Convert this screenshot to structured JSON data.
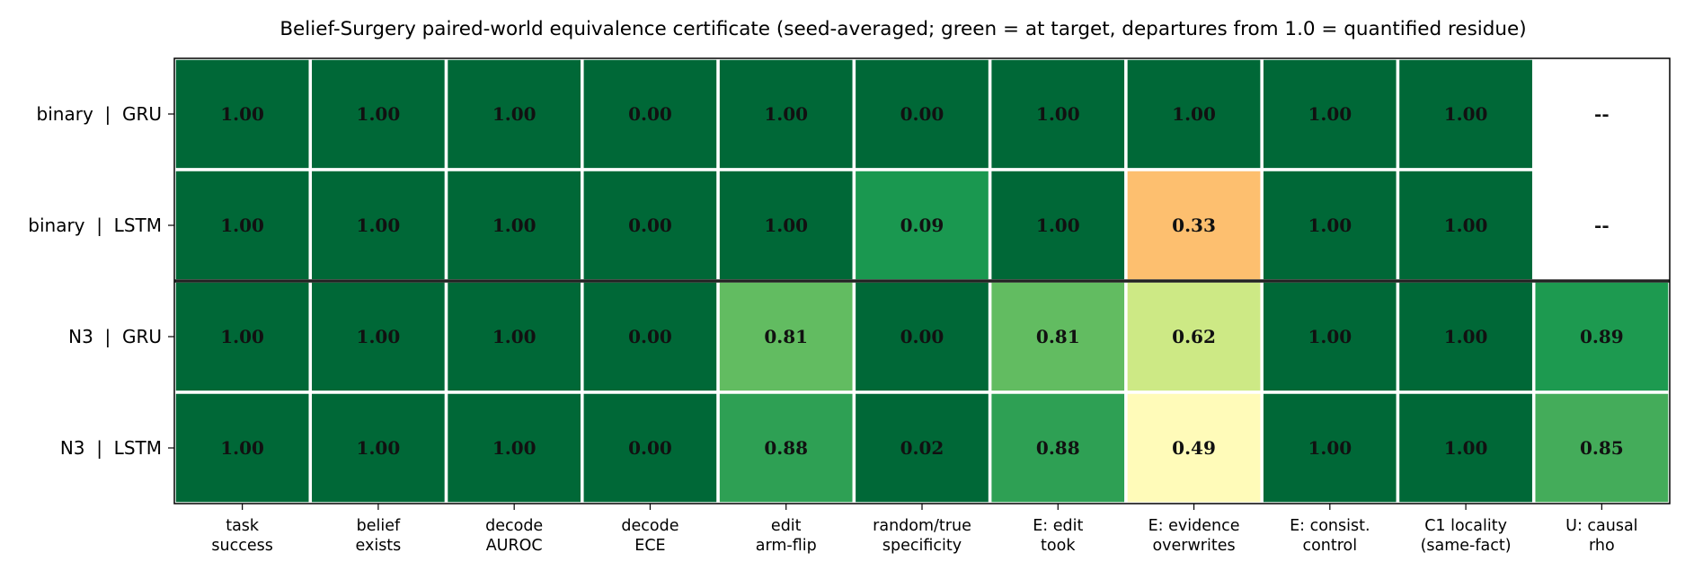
{
  "chart_data": {
    "type": "heatmap",
    "title": "Belief-Surgery paired-world equivalence certificate  (seed-averaged; green = at target, departures from 1.0 = quantified residue)",
    "rows": [
      "binary  |  GRU",
      "binary  |  LSTM",
      "N3  |  GRU",
      "N3  |  LSTM"
    ],
    "columns": [
      [
        "task",
        "success"
      ],
      [
        "belief",
        "exists"
      ],
      [
        "decode",
        "AUROC"
      ],
      [
        "decode",
        "ECE"
      ],
      [
        "edit",
        "arm-flip"
      ],
      [
        "random/true",
        "specificity"
      ],
      [
        "E: edit",
        "took"
      ],
      [
        "E: evidence",
        "overwrites"
      ],
      [
        "E: consist.",
        "control"
      ],
      [
        "C1 locality",
        "(same-fact)"
      ],
      [
        "U: causal",
        "rho"
      ]
    ],
    "values": [
      [
        1.0,
        1.0,
        1.0,
        0.0,
        1.0,
        0.0,
        1.0,
        1.0,
        1.0,
        1.0,
        null
      ],
      [
        1.0,
        1.0,
        1.0,
        0.0,
        1.0,
        0.09,
        1.0,
        0.33,
        1.0,
        1.0,
        null
      ],
      [
        1.0,
        1.0,
        1.0,
        0.0,
        0.81,
        0.0,
        0.81,
        0.62,
        1.0,
        1.0,
        0.89
      ],
      [
        1.0,
        1.0,
        1.0,
        0.0,
        0.88,
        0.02,
        0.88,
        0.49,
        1.0,
        1.0,
        0.85
      ]
    ],
    "labels": [
      [
        "1.00",
        "1.00",
        "1.00",
        "0.00",
        "1.00",
        "0.00",
        "1.00",
        "1.00",
        "1.00",
        "1.00",
        "--"
      ],
      [
        "1.00",
        "1.00",
        "1.00",
        "0.00",
        "1.00",
        "0.09",
        "1.00",
        "0.33",
        "1.00",
        "1.00",
        "--"
      ],
      [
        "1.00",
        "1.00",
        "1.00",
        "0.00",
        "0.81",
        "0.00",
        "0.81",
        "0.62",
        "1.00",
        "1.00",
        "0.89"
      ],
      [
        "1.00",
        "1.00",
        "1.00",
        "0.00",
        "0.88",
        "0.02",
        "0.88",
        "0.49",
        "1.00",
        "1.00",
        "0.85"
      ]
    ],
    "cell_colors": [
      [
        "#006837",
        "#006837",
        "#006837",
        "#006837",
        "#006837",
        "#006837",
        "#006837",
        "#006837",
        "#006837",
        "#006837",
        "#ffffff"
      ],
      [
        "#006837",
        "#006837",
        "#006837",
        "#006837",
        "#006837",
        "#1a9850",
        "#006837",
        "#fdbf6f",
        "#006837",
        "#006837",
        "#ffffff"
      ],
      [
        "#006837",
        "#006837",
        "#006837",
        "#006837",
        "#62bc61",
        "#006837",
        "#62bc61",
        "#cde985",
        "#006837",
        "#006837",
        "#1d9a50"
      ],
      [
        "#006837",
        "#006837",
        "#006837",
        "#006837",
        "#2ea054",
        "#006837",
        "#2ea054",
        "#fffbb9",
        "#006837",
        "#006837",
        "#44ac5a"
      ]
    ],
    "group_separator_after_row": 1,
    "colormap": "RdYlGn",
    "grid": false,
    "legend": "none"
  }
}
